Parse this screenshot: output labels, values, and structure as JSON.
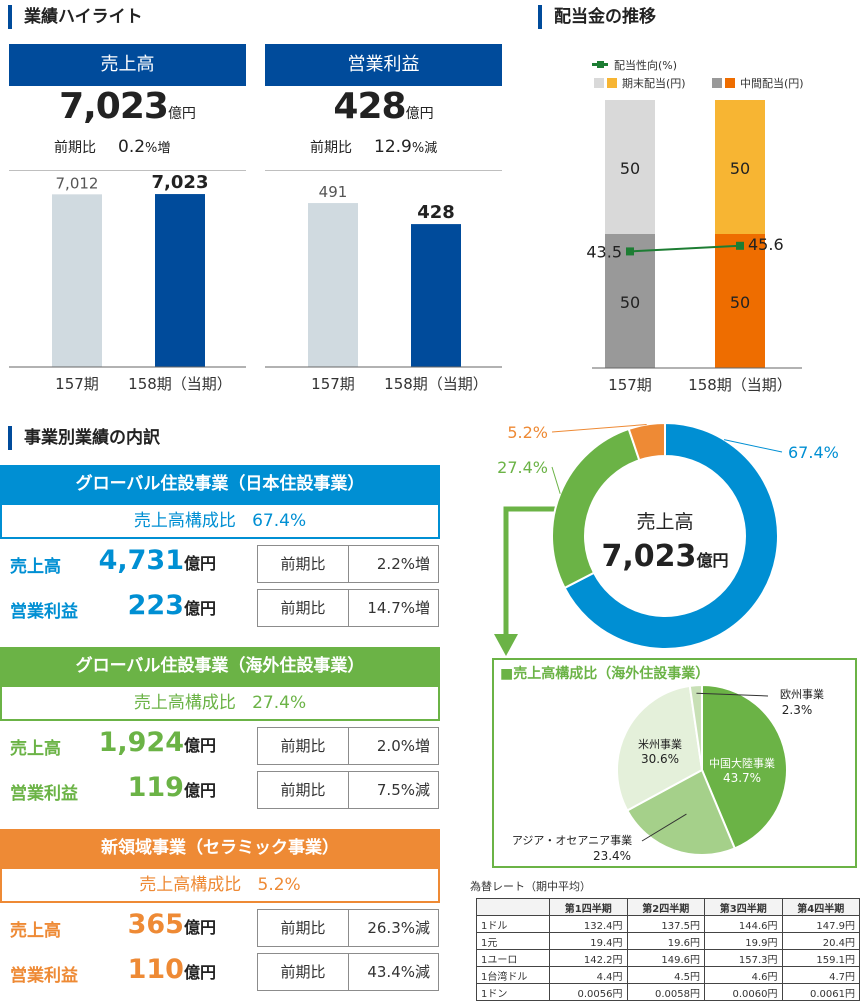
{
  "highlights": {
    "title": "業績ハイライト",
    "kpis": [
      {
        "header": "売上高",
        "value": "7,023",
        "unit": "億円",
        "yoy_label": "前期比",
        "yoy_value": "0.2",
        "yoy_unit": "%増"
      },
      {
        "header": "営業利益",
        "value": "428",
        "unit": "億円",
        "yoy_label": "前期比",
        "yoy_value": "12.9",
        "yoy_unit": "%減"
      }
    ]
  },
  "dividend": {
    "title": "配当金の推移",
    "legend": {
      "ratio": "配当性向(%)",
      "year_end": "期末配当(円)",
      "interim": "中間配当(円)"
    }
  },
  "segments": {
    "title": "事業別業績の内訳",
    "items": [
      {
        "name": "グローバル住設事業（日本住設事業）",
        "share_label": "売上高構成比",
        "share": "67.4%",
        "color": "#008fd3",
        "rows": [
          {
            "label": "売上高",
            "value": "4,731",
            "unit": "億円",
            "yoy_label": "前期比",
            "yoy": "2.2%増"
          },
          {
            "label": "営業利益",
            "value": "223",
            "unit": "億円",
            "yoy_label": "前期比",
            "yoy": "14.7%増"
          }
        ]
      },
      {
        "name": "グローバル住設事業（海外住設事業）",
        "share_label": "売上高構成比",
        "share": "27.4%",
        "color": "#6bb346",
        "rows": [
          {
            "label": "売上高",
            "value": "1,924",
            "unit": "億円",
            "yoy_label": "前期比",
            "yoy": "2.0%増"
          },
          {
            "label": "営業利益",
            "value": "119",
            "unit": "億円",
            "yoy_label": "前期比",
            "yoy": "7.5%減"
          }
        ]
      },
      {
        "name": "新領域事業（セラミック事業）",
        "share_label": "売上高構成比",
        "share": "5.2%",
        "color": "#ee8a35",
        "rows": [
          {
            "label": "売上高",
            "value": "365",
            "unit": "億円",
            "yoy_label": "前期比",
            "yoy": "26.3%減"
          },
          {
            "label": "営業利益",
            "value": "110",
            "unit": "億円",
            "yoy_label": "前期比",
            "yoy": "43.4%減"
          }
        ]
      }
    ]
  },
  "fx": {
    "title": "為替レート（期中平均）",
    "headers": [
      "",
      "第1四半期",
      "第2四半期",
      "第3四半期",
      "第4四半期"
    ],
    "rows": [
      [
        "1ドル",
        "132.4円",
        "137.5円",
        "144.6円",
        "147.9円"
      ],
      [
        "1元",
        "19.4円",
        "19.6円",
        "19.9円",
        "20.4円"
      ],
      [
        "1ユーロ",
        "142.2円",
        "149.6円",
        "157.3円",
        "159.1円"
      ],
      [
        "1台湾ドル",
        "4.4円",
        "4.5円",
        "4.6円",
        "4.7円"
      ],
      [
        "1ドン",
        "0.0056円",
        "0.0058円",
        "0.0060円",
        "0.0061円"
      ]
    ]
  },
  "chart_data": [
    {
      "type": "bar",
      "categories": [
        "157期",
        "158期（当期）"
      ],
      "values": [
        7012,
        7023
      ],
      "value_labels": [
        "7,012",
        "7,023"
      ],
      "colors": [
        "#d0dae0",
        "#004b9b"
      ],
      "ylim": [
        0,
        8000
      ]
    },
    {
      "type": "bar",
      "categories": [
        "157期",
        "158期（当期）"
      ],
      "values": [
        491,
        428
      ],
      "value_labels": [
        "491",
        "428"
      ],
      "colors": [
        "#d0dae0",
        "#004b9b"
      ],
      "ylim": [
        0,
        590
      ]
    },
    {
      "type": "bar",
      "stacked": true,
      "categories": [
        "157期",
        "158期（当期）"
      ],
      "series": [
        {
          "name": "中間配当(円)",
          "values": [
            50,
            50
          ],
          "colors": [
            "#999999",
            "#ee6d00"
          ]
        },
        {
          "name": "期末配当(円)",
          "values": [
            50,
            50
          ],
          "colors": [
            "#d9d9d9",
            "#f7b533"
          ]
        }
      ],
      "line": {
        "name": "配当性向(%)",
        "values": [
          43.5,
          45.6
        ],
        "color": "#1d7d33"
      },
      "ylim": [
        0,
        100
      ]
    },
    {
      "type": "pie",
      "donut": true,
      "center_label": "売上高",
      "center_value": "7,023",
      "center_unit": "億円",
      "slices": [
        {
          "label": "日本住設事業",
          "value": 67.4,
          "text": "67.4%",
          "color": "#008fd3"
        },
        {
          "label": "海外住設事業",
          "value": 27.4,
          "text": "27.4%",
          "color": "#6bb346"
        },
        {
          "label": "セラミック事業",
          "value": 5.2,
          "text": "5.2%",
          "color": "#ee8a35"
        }
      ]
    },
    {
      "type": "pie",
      "title": "■売上高構成比（海外住設事業）",
      "slices": [
        {
          "label": "中国大陸事業",
          "value": 43.7,
          "text": "43.7%",
          "color": "#6bb346"
        },
        {
          "label": "アジア・オセアニア事業",
          "value": 23.4,
          "text": "23.4%",
          "color": "#a5d08a"
        },
        {
          "label": "米州事業",
          "value": 30.6,
          "text": "30.6%",
          "color": "#e4f0da"
        },
        {
          "label": "欧州事業",
          "value": 2.3,
          "text": "2.3%",
          "color": "#c8e0b6"
        }
      ]
    }
  ]
}
